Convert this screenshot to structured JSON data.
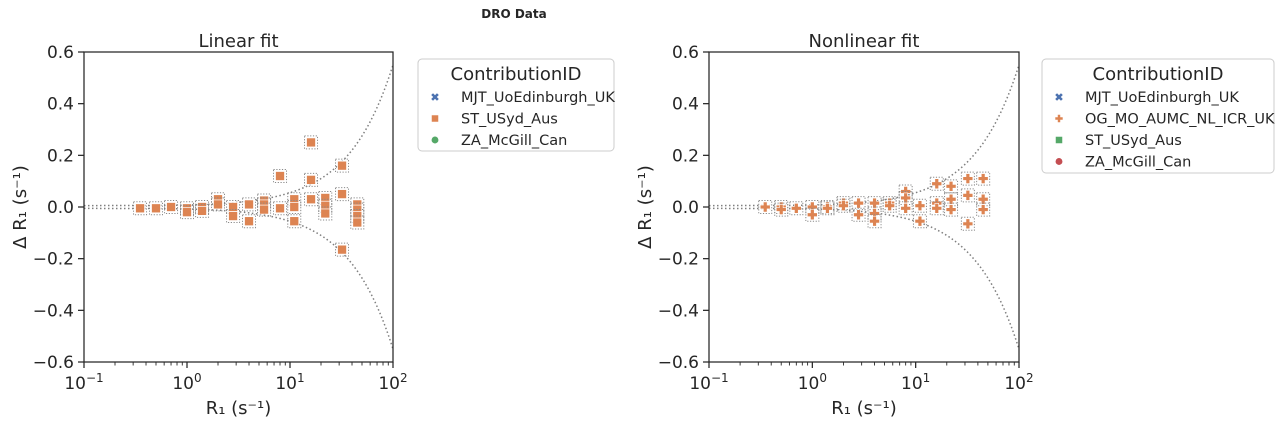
{
  "figure": {
    "title": "DRO Data"
  },
  "colors": {
    "blue": "#4c72b0",
    "orange": "#dd8452",
    "green": "#55a868",
    "red": "#c44e52",
    "axis": "#262626",
    "bound": "#7f7f7f"
  },
  "chart_data": [
    {
      "type": "scatter",
      "title": "Linear fit",
      "xlabel": "R₁ (s⁻¹)",
      "ylabel": "Δ R₁ (s⁻¹)",
      "xscale": "log",
      "xlim": [
        0.1,
        100
      ],
      "ylim": [
        -0.6,
        0.6
      ],
      "xticks": [
        0.1,
        1,
        10,
        100
      ],
      "xtick_labels": [
        "10",
        "10",
        "10",
        "10"
      ],
      "xtick_exps": [
        "−1",
        "0",
        "1",
        "2"
      ],
      "yticks": [
        0.6,
        0.4,
        0.2,
        0.0,
        -0.2,
        -0.4,
        -0.6
      ],
      "ytick_labels": [
        "0.6",
        "0.4",
        "0.2",
        "0.0",
        "−0.2",
        "−0.4",
        "−0.6"
      ],
      "grid": false,
      "legend": {
        "title": "ContributionID",
        "placement": "outside-right",
        "entries": [
          {
            "label": "MJT_UoEdinburgh_UK",
            "marker": "x",
            "color": "#4c72b0"
          },
          {
            "label": "ST_USyd_Aus",
            "marker": "square",
            "color": "#dd8452"
          },
          {
            "label": "ZA_McGill_Can",
            "marker": "circle",
            "color": "#55a868"
          }
        ]
      },
      "bound_k": 0.0055,
      "series": [
        {
          "name": "ST_USyd_Aus",
          "marker": "square",
          "color": "#dd8452",
          "points": [
            [
              0.35,
              -0.005
            ],
            [
              0.5,
              -0.005
            ],
            [
              0.7,
              0.0
            ],
            [
              1.0,
              -0.005
            ],
            [
              1.0,
              -0.02
            ],
            [
              1.4,
              0.0
            ],
            [
              1.4,
              -0.015
            ],
            [
              2.0,
              0.03
            ],
            [
              2.0,
              0.01
            ],
            [
              2.8,
              0.0
            ],
            [
              2.8,
              -0.035
            ],
            [
              4.0,
              0.01
            ],
            [
              4.0,
              -0.055
            ],
            [
              5.6,
              0.025
            ],
            [
              5.6,
              0.01
            ],
            [
              5.6,
              -0.01
            ],
            [
              8.0,
              0.12
            ],
            [
              8.0,
              -0.005
            ],
            [
              11.0,
              0.03
            ],
            [
              11.0,
              0.0
            ],
            [
              11.0,
              -0.055
            ],
            [
              16.0,
              0.25
            ],
            [
              16.0,
              0.105
            ],
            [
              16.0,
              0.03
            ],
            [
              22.0,
              0.035
            ],
            [
              22.0,
              0.005
            ],
            [
              22.0,
              -0.025
            ],
            [
              32.0,
              0.16
            ],
            [
              32.0,
              0.05
            ],
            [
              32.0,
              -0.165
            ],
            [
              45.0,
              0.01
            ],
            [
              45.0,
              -0.01
            ],
            [
              45.0,
              -0.035
            ],
            [
              45.0,
              -0.06
            ]
          ]
        }
      ]
    },
    {
      "type": "scatter",
      "title": "Nonlinear fit",
      "xlabel": "R₁ (s⁻¹)",
      "ylabel": "Δ R₁ (s⁻¹)",
      "xscale": "log",
      "xlim": [
        0.1,
        100
      ],
      "ylim": [
        -0.6,
        0.6
      ],
      "xticks": [
        0.1,
        1,
        10,
        100
      ],
      "xtick_labels": [
        "10",
        "10",
        "10",
        "10"
      ],
      "xtick_exps": [
        "−1",
        "0",
        "1",
        "2"
      ],
      "yticks": [
        0.6,
        0.4,
        0.2,
        0.0,
        -0.2,
        -0.4,
        -0.6
      ],
      "ytick_labels": [
        "0.6",
        "0.4",
        "0.2",
        "0.0",
        "−0.2",
        "−0.4",
        "−0.6"
      ],
      "grid": false,
      "legend": {
        "title": "ContributionID",
        "placement": "outside-right",
        "entries": [
          {
            "label": "MJT_UoEdinburgh_UK",
            "marker": "x",
            "color": "#4c72b0"
          },
          {
            "label": "OG_MO_AUMC_NL_ICR_UK",
            "marker": "plus",
            "color": "#dd8452"
          },
          {
            "label": "ST_USyd_Aus",
            "marker": "square",
            "color": "#55a868"
          },
          {
            "label": "ZA_McGill_Can",
            "marker": "circle",
            "color": "#c44e52"
          }
        ]
      },
      "bound_k": 0.0055,
      "series": [
        {
          "name": "OG_MO_AUMC_NL_ICR_UK",
          "marker": "plus",
          "color": "#dd8452",
          "points": [
            [
              0.35,
              0.0
            ],
            [
              0.5,
              0.0
            ],
            [
              0.5,
              -0.01
            ],
            [
              0.7,
              -0.005
            ],
            [
              1.0,
              0.0
            ],
            [
              1.0,
              -0.03
            ],
            [
              1.4,
              0.0
            ],
            [
              1.4,
              -0.005
            ],
            [
              2.0,
              0.015
            ],
            [
              2.0,
              0.005
            ],
            [
              2.8,
              0.015
            ],
            [
              2.8,
              -0.03
            ],
            [
              4.0,
              0.015
            ],
            [
              4.0,
              -0.025
            ],
            [
              4.0,
              -0.055
            ],
            [
              5.6,
              0.015
            ],
            [
              5.6,
              0.005
            ],
            [
              8.0,
              0.06
            ],
            [
              8.0,
              0.035
            ],
            [
              8.0,
              -0.005
            ],
            [
              11.0,
              0.005
            ],
            [
              11.0,
              -0.055
            ],
            [
              16.0,
              0.09
            ],
            [
              16.0,
              0.015
            ],
            [
              16.0,
              -0.005
            ],
            [
              22.0,
              0.08
            ],
            [
              22.0,
              0.03
            ],
            [
              22.0,
              -0.01
            ],
            [
              32.0,
              0.11
            ],
            [
              32.0,
              0.045
            ],
            [
              32.0,
              -0.065
            ],
            [
              45.0,
              0.11
            ],
            [
              45.0,
              0.03
            ],
            [
              45.0,
              -0.01
            ]
          ]
        }
      ]
    }
  ]
}
